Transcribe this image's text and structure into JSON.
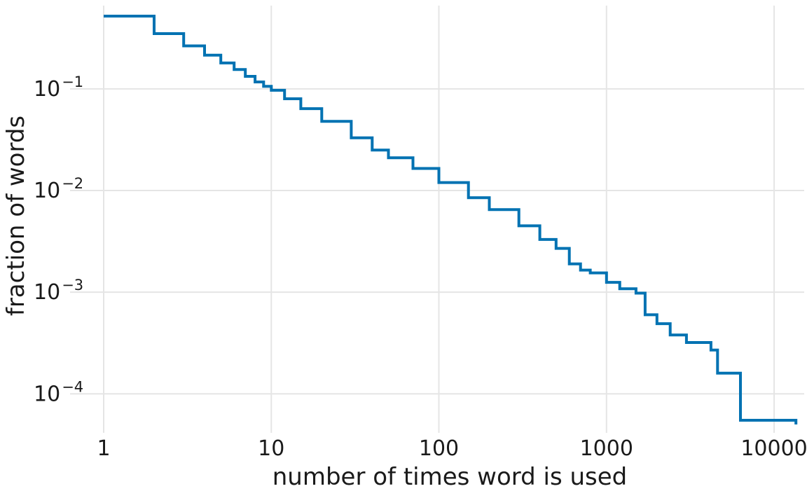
{
  "chart_data": {
    "type": "line",
    "step": true,
    "xscale": "log",
    "yscale": "log",
    "xlim": [
      1,
      14000
    ],
    "ylim": [
      5e-05,
      0.6
    ],
    "grid": true,
    "xlabel": "number of times word is used",
    "ylabel": "fraction of words",
    "x_ticks": [
      {
        "value": 1,
        "label": "1"
      },
      {
        "value": 10,
        "label": "10"
      },
      {
        "value": 100,
        "label": "100"
      },
      {
        "value": 1000,
        "label": "1000"
      },
      {
        "value": 10000,
        "label": "10000"
      }
    ],
    "y_ticks": [
      {
        "value": 0.1,
        "base": "10",
        "exp": "−1"
      },
      {
        "value": 0.01,
        "base": "10",
        "exp": "−2"
      },
      {
        "value": 0.001,
        "base": "10",
        "exp": "−3"
      },
      {
        "value": 0.0001,
        "base": "10",
        "exp": "−4"
      }
    ],
    "series": [
      {
        "color": "#0072b2",
        "points": [
          [
            1,
            0.52
          ],
          [
            2,
            0.35
          ],
          [
            3,
            0.265
          ],
          [
            4,
            0.215
          ],
          [
            5,
            0.18
          ],
          [
            6,
            0.155
          ],
          [
            7,
            0.133
          ],
          [
            8,
            0.117
          ],
          [
            9,
            0.106
          ],
          [
            10,
            0.097
          ],
          [
            12,
            0.08
          ],
          [
            15,
            0.064
          ],
          [
            20,
            0.048
          ],
          [
            30,
            0.033
          ],
          [
            40,
            0.025
          ],
          [
            50,
            0.021
          ],
          [
            70,
            0.0165
          ],
          [
            100,
            0.012
          ],
          [
            150,
            0.0085
          ],
          [
            200,
            0.0065
          ],
          [
            300,
            0.0045
          ],
          [
            400,
            0.0033
          ],
          [
            500,
            0.0027
          ],
          [
            600,
            0.0019
          ],
          [
            700,
            0.00165
          ],
          [
            800,
            0.00155
          ],
          [
            1000,
            0.00125
          ],
          [
            1200,
            0.00108
          ],
          [
            1500,
            0.00098
          ],
          [
            1700,
            0.0006
          ],
          [
            2000,
            0.00049
          ],
          [
            2400,
            0.00038
          ],
          [
            3000,
            0.00032
          ],
          [
            4200,
            0.00027
          ],
          [
            4600,
            0.00016
          ],
          [
            6300,
            5.5e-05
          ],
          [
            13500,
            5e-05
          ]
        ]
      }
    ]
  }
}
